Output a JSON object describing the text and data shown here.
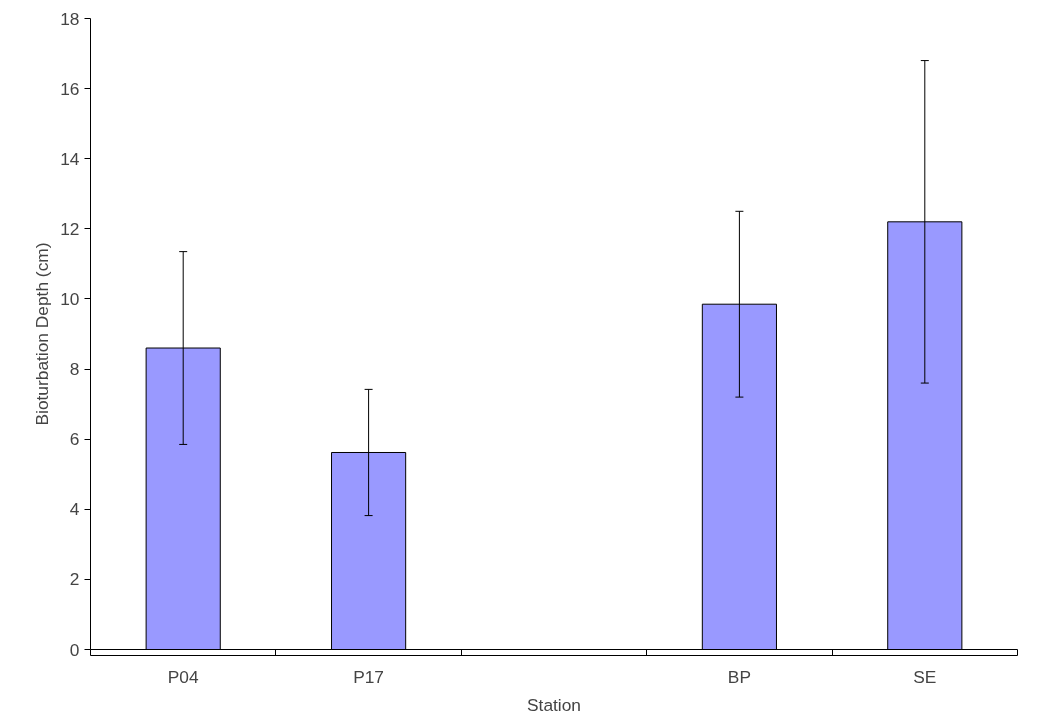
{
  "chart_data": {
    "type": "bar",
    "xlabel": "Station",
    "ylabel": "Bioturbation Depth (cm)",
    "categories": [
      "P04",
      "P17",
      null,
      "BP",
      "SE"
    ],
    "values": [
      8.6,
      5.62,
      null,
      9.85,
      12.2
    ],
    "errors": [
      2.75,
      1.8,
      null,
      2.65,
      4.6
    ],
    "color": "#9999ff",
    "ylim": [
      0,
      18
    ],
    "yticks": [
      0,
      2,
      4,
      6,
      8,
      10,
      12,
      14,
      16,
      18
    ],
    "grid": false
  }
}
